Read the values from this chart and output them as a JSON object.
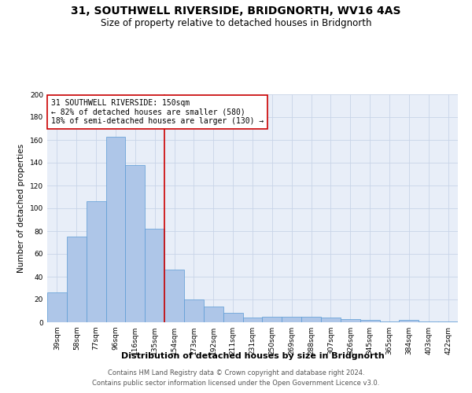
{
  "title": "31, SOUTHWELL RIVERSIDE, BRIDGNORTH, WV16 4AS",
  "subtitle": "Size of property relative to detached houses in Bridgnorth",
  "xlabel": "Distribution of detached houses by size in Bridgnorth",
  "ylabel": "Number of detached properties",
  "categories": [
    "39sqm",
    "58sqm",
    "77sqm",
    "96sqm",
    "116sqm",
    "135sqm",
    "154sqm",
    "173sqm",
    "192sqm",
    "211sqm",
    "231sqm",
    "250sqm",
    "269sqm",
    "288sqm",
    "307sqm",
    "326sqm",
    "345sqm",
    "365sqm",
    "384sqm",
    "403sqm",
    "422sqm"
  ],
  "values": [
    26,
    75,
    106,
    163,
    138,
    82,
    46,
    20,
    14,
    8,
    4,
    5,
    5,
    5,
    4,
    3,
    2,
    1,
    2,
    1,
    1
  ],
  "bar_color": "#aec6e8",
  "bar_edge_color": "#5b9bd5",
  "property_line_index": 6,
  "property_line_color": "#cc0000",
  "annotation_text": "31 SOUTHWELL RIVERSIDE: 150sqm\n← 82% of detached houses are smaller (580)\n18% of semi-detached houses are larger (130) →",
  "annotation_box_color": "#cc0000",
  "ylim": [
    0,
    200
  ],
  "yticks": [
    0,
    20,
    40,
    60,
    80,
    100,
    120,
    140,
    160,
    180,
    200
  ],
  "grid_color": "#c8d4e8",
  "background_color": "#e8eef8",
  "footer_line1": "Contains HM Land Registry data © Crown copyright and database right 2024.",
  "footer_line2": "Contains public sector information licensed under the Open Government Licence v3.0.",
  "title_fontsize": 10,
  "subtitle_fontsize": 8.5,
  "xlabel_fontsize": 8,
  "ylabel_fontsize": 7.5,
  "tick_fontsize": 6.5,
  "annotation_fontsize": 7,
  "footer_fontsize": 6
}
